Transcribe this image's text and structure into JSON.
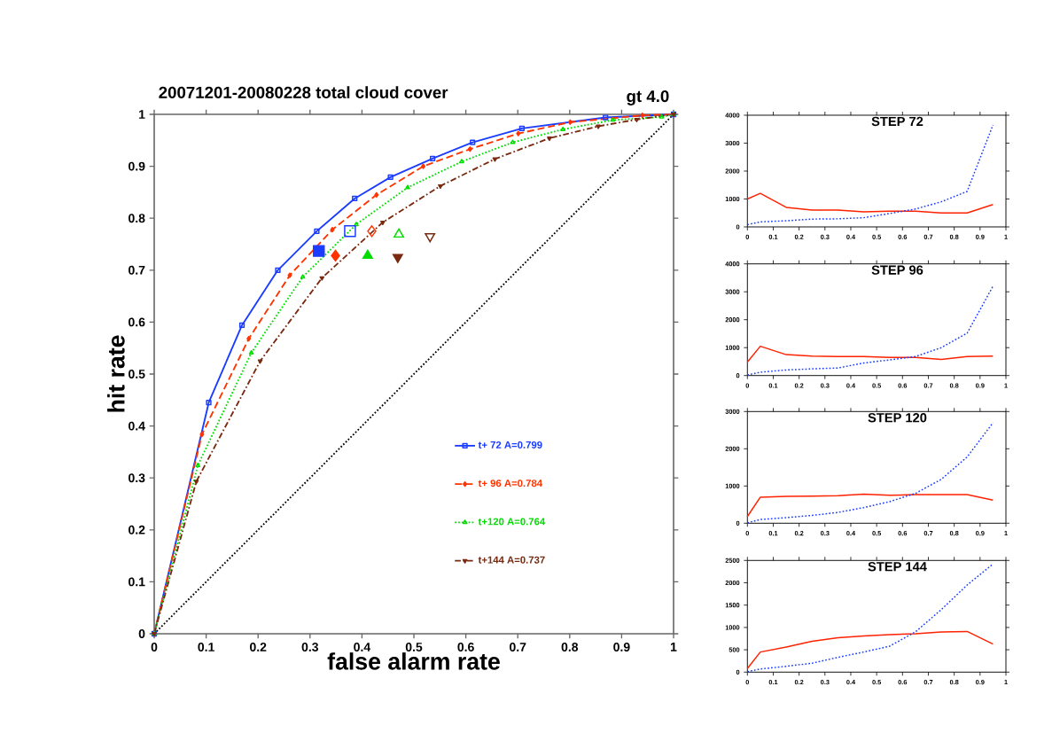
{
  "chart_data": [
    {
      "type": "line",
      "title": "20071201-20080228  total cloud cover",
      "subtitle": "gt   4.0",
      "xlabel": "false alarm rate",
      "ylabel": "hit rate",
      "xlim": [
        0,
        1
      ],
      "ylim": [
        0,
        1
      ],
      "xticks": [
        0,
        0.1,
        0.2,
        0.3,
        0.4,
        0.5,
        0.6,
        0.7,
        0.8,
        0.9,
        1
      ],
      "yticks": [
        0,
        0.1,
        0.2,
        0.3,
        0.4,
        0.5,
        0.6,
        0.7,
        0.8,
        0.9,
        1
      ],
      "legend": "bottom right",
      "series": [
        {
          "name": "t+ 72  A=0.799",
          "color": "#1a3cff",
          "line_style": "solid",
          "marker": "square-open",
          "x": [
            0,
            0.105,
            0.169,
            0.238,
            0.313,
            0.386,
            0.455,
            0.536,
            0.613,
            0.708,
            0.869,
            1
          ],
          "values": [
            0,
            0.445,
            0.594,
            0.7,
            0.775,
            0.838,
            0.879,
            0.915,
            0.946,
            0.973,
            0.994,
            1
          ]
        },
        {
          "name": "t+ 96  A=0.784",
          "color": "#ff3300",
          "line_style": "dashed",
          "marker": "diamond",
          "x": [
            0,
            0.092,
            0.182,
            0.261,
            0.343,
            0.428,
            0.518,
            0.608,
            0.701,
            0.801,
            0.94,
            1
          ],
          "values": [
            0,
            0.384,
            0.568,
            0.69,
            0.778,
            0.845,
            0.9,
            0.933,
            0.963,
            0.985,
            0.998,
            1
          ]
        },
        {
          "name": "t+120  A=0.764",
          "color": "#00dd00",
          "line_style": "dotted",
          "marker": "triangle-open",
          "x": [
            0,
            0.084,
            0.187,
            0.286,
            0.389,
            0.488,
            0.592,
            0.69,
            0.787,
            0.883,
            0.977,
            1
          ],
          "values": [
            0,
            0.324,
            0.541,
            0.687,
            0.788,
            0.859,
            0.909,
            0.946,
            0.971,
            0.989,
            0.995,
            1
          ]
        },
        {
          "name": "t+144  A=0.737",
          "color": "#7a2a10",
          "line_style": "dashdot",
          "marker": "triangle-down",
          "x": [
            0,
            0.081,
            0.204,
            0.323,
            0.44,
            0.551,
            0.656,
            0.761,
            0.855,
            0.929,
            1
          ],
          "values": [
            0,
            0.293,
            0.525,
            0.685,
            0.792,
            0.862,
            0.914,
            0.954,
            0.977,
            0.99,
            1
          ]
        },
        {
          "type": "line",
          "color": "#000000",
          "line_style": "dotted",
          "x": [
            0,
            1
          ],
          "values": [
            0,
            1
          ]
        },
        {
          "type": "scatter",
          "color": "#1a3cff",
          "marker": "square",
          "x": [
            0.317
          ],
          "values": [
            0.737
          ]
        },
        {
          "type": "scatter",
          "color": "#1a3cff",
          "marker": "square-open",
          "x": [
            0.377
          ],
          "values": [
            0.775
          ]
        },
        {
          "type": "scatter",
          "color": "#ff3300",
          "marker": "diamond",
          "x": [
            0.349
          ],
          "values": [
            0.728
          ]
        },
        {
          "type": "scatter",
          "color": "#ff3300",
          "marker": "diamond-open",
          "x": [
            0.419
          ],
          "values": [
            0.775
          ]
        },
        {
          "type": "scatter",
          "color": "#00dd00",
          "marker": "triangle",
          "x": [
            0.411
          ],
          "values": [
            0.728
          ]
        },
        {
          "type": "scatter",
          "color": "#00dd00",
          "marker": "triangle-open",
          "x": [
            0.471
          ],
          "values": [
            0.769
          ]
        },
        {
          "type": "scatter",
          "color": "#7a2a10",
          "marker": "triangle-down",
          "x": [
            0.469
          ],
          "values": [
            0.725
          ]
        },
        {
          "type": "scatter",
          "color": "#7a2a10",
          "marker": "triangle-down-open",
          "x": [
            0.531
          ],
          "values": [
            0.765
          ]
        }
      ]
    },
    {
      "type": "line",
      "title": "STEP  72",
      "xlim": [
        0,
        1
      ],
      "ylim": [
        0,
        4000
      ],
      "xticks": [
        0,
        0.1,
        0.2,
        0.3,
        0.4,
        0.5,
        0.6,
        0.7,
        0.8,
        0.9,
        1
      ],
      "yticks": [
        0,
        1000,
        2000,
        3000,
        4000
      ],
      "x": [
        0,
        0.05,
        0.15,
        0.25,
        0.35,
        0.45,
        0.55,
        0.65,
        0.75,
        0.85,
        0.95
      ],
      "series": [
        {
          "color": "#ff2200",
          "line_style": "solid",
          "values": [
            1000,
            1200,
            700,
            600,
            600,
            540,
            560,
            560,
            500,
            500,
            800
          ]
        },
        {
          "color": "#1a3cff",
          "line_style": "dotted",
          "values": [
            80,
            180,
            220,
            280,
            290,
            330,
            480,
            640,
            900,
            1270,
            3650
          ]
        }
      ]
    },
    {
      "type": "line",
      "title": "STEP  96",
      "xlim": [
        0,
        1
      ],
      "ylim": [
        0,
        4000
      ],
      "xticks": [
        0,
        0.1,
        0.2,
        0.3,
        0.4,
        0.5,
        0.6,
        0.7,
        0.8,
        0.9,
        1
      ],
      "yticks": [
        0,
        1000,
        2000,
        3000,
        4000
      ],
      "x": [
        0,
        0.05,
        0.15,
        0.25,
        0.35,
        0.45,
        0.55,
        0.65,
        0.75,
        0.85,
        0.95
      ],
      "series": [
        {
          "color": "#ff2200",
          "line_style": "solid",
          "values": [
            480,
            1050,
            750,
            700,
            680,
            680,
            650,
            650,
            580,
            680,
            700
          ]
        },
        {
          "color": "#1a3cff",
          "line_style": "dotted",
          "values": [
            20,
            120,
            200,
            240,
            270,
            450,
            560,
            680,
            1000,
            1520,
            3200
          ]
        }
      ]
    },
    {
      "type": "line",
      "title": "STEP 120",
      "xlim": [
        0,
        1
      ],
      "ylim": [
        0,
        3000
      ],
      "xticks": [
        0,
        0.1,
        0.2,
        0.3,
        0.4,
        0.5,
        0.6,
        0.7,
        0.8,
        0.9,
        1
      ],
      "yticks": [
        0,
        1000,
        2000,
        3000
      ],
      "x": [
        0,
        0.05,
        0.15,
        0.25,
        0.35,
        0.45,
        0.55,
        0.65,
        0.75,
        0.85,
        0.95
      ],
      "series": [
        {
          "color": "#ff2200",
          "line_style": "solid",
          "values": [
            180,
            700,
            720,
            730,
            740,
            780,
            750,
            770,
            770,
            770,
            620
          ]
        },
        {
          "color": "#1a3cff",
          "line_style": "dotted",
          "values": [
            10,
            100,
            150,
            210,
            290,
            420,
            580,
            800,
            1180,
            1780,
            2700
          ]
        }
      ]
    },
    {
      "type": "line",
      "title": "STEP 144",
      "xlim": [
        0,
        1
      ],
      "ylim": [
        0,
        2500
      ],
      "xticks": [
        0,
        0.1,
        0.2,
        0.3,
        0.4,
        0.5,
        0.6,
        0.7,
        0.8,
        0.9,
        1
      ],
      "yticks": [
        0,
        500,
        1000,
        1500,
        2000,
        2500
      ],
      "x": [
        0,
        0.05,
        0.15,
        0.25,
        0.35,
        0.45,
        0.55,
        0.65,
        0.75,
        0.85,
        0.95
      ],
      "series": [
        {
          "color": "#ff2200",
          "line_style": "solid",
          "values": [
            80,
            450,
            560,
            690,
            770,
            810,
            840,
            860,
            900,
            910,
            630
          ]
        },
        {
          "color": "#1a3cff",
          "line_style": "dotted",
          "values": [
            10,
            70,
            130,
            200,
            330,
            450,
            580,
            900,
            1400,
            1950,
            2420
          ]
        }
      ]
    }
  ]
}
